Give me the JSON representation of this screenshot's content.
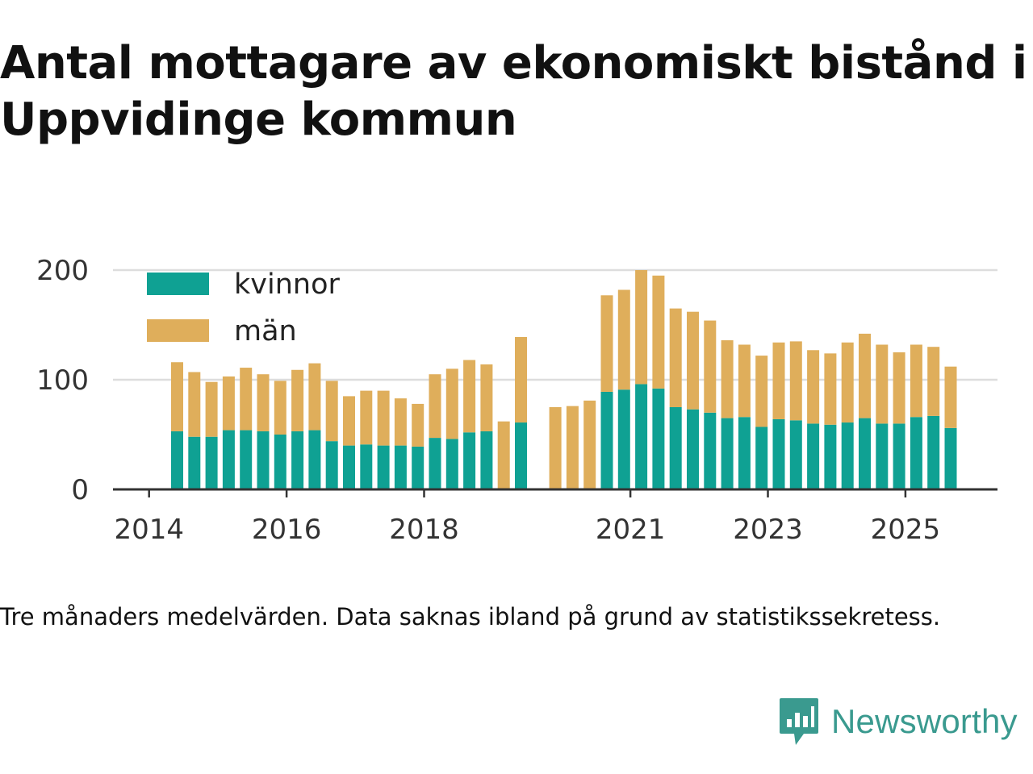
{
  "title": "Antal mottagare av ekonomiskt bistånd i Uppvidinge kommun",
  "note": "Tre månaders medelvärden. Data saknas ibland på grund av statistikssekretess.",
  "logo": {
    "text": "Newsworthy",
    "icon": "bar-chart-speech-bubble-icon"
  },
  "colors": {
    "kvinnor": "#0fa193",
    "man": "#dfae5b",
    "grid": "#dddddd",
    "axis": "#333333",
    "tick_text": "#333333"
  },
  "chart_data": {
    "type": "bar",
    "stacked": true,
    "ylim": [
      0,
      200
    ],
    "yticks": [
      0,
      100,
      200
    ],
    "xticks": [
      "2014",
      "2016",
      "2018",
      "2021",
      "2023",
      "2025"
    ],
    "legend_position": "top-left",
    "grid": true,
    "categories": [
      "2014-05",
      "2014-08",
      "2014-11",
      "2015-02",
      "2015-05",
      "2015-08",
      "2015-11",
      "2016-02",
      "2016-05",
      "2016-08",
      "2016-11",
      "2017-02",
      "2017-05",
      "2017-08",
      "2017-11",
      "2018-02",
      "2018-05",
      "2018-08",
      "2018-11",
      "2019-02",
      "2019-05",
      "2019-08",
      "2019-11",
      "2020-02",
      "2020-05",
      "2020-08",
      "2020-11",
      "2021-02",
      "2021-05",
      "2021-08",
      "2021-11",
      "2022-02",
      "2022-05",
      "2022-08",
      "2022-11",
      "2023-02",
      "2023-05",
      "2023-08",
      "2023-11",
      "2024-02",
      "2024-05",
      "2024-08",
      "2024-11",
      "2025-02",
      "2025-05",
      "2025-08"
    ],
    "series": [
      {
        "name": "kvinnor",
        "values": [
          53,
          48,
          48,
          54,
          54,
          53,
          50,
          53,
          54,
          44,
          40,
          41,
          40,
          40,
          39,
          47,
          46,
          52,
          53,
          null,
          61,
          null,
          null,
          null,
          null,
          89,
          91,
          96,
          92,
          75,
          73,
          70,
          65,
          66,
          57,
          64,
          63,
          60,
          59,
          61,
          65,
          60,
          60,
          66,
          67,
          56
        ]
      },
      {
        "name": "män",
        "values": [
          63,
          59,
          50,
          49,
          57,
          52,
          49,
          56,
          61,
          55,
          45,
          49,
          50,
          43,
          39,
          58,
          64,
          66,
          61,
          62,
          78,
          null,
          75,
          76,
          81,
          88,
          91,
          104,
          103,
          90,
          89,
          84,
          71,
          66,
          65,
          70,
          72,
          67,
          65,
          73,
          77,
          72,
          65,
          66,
          63,
          56
        ]
      }
    ]
  }
}
